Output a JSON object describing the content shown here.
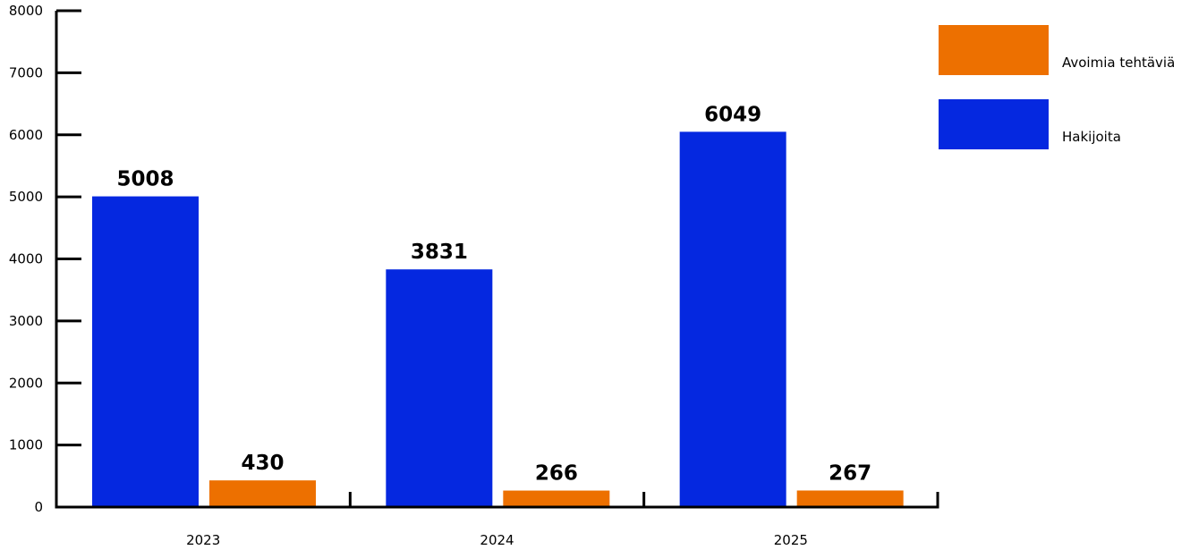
{
  "chart_data": {
    "type": "bar",
    "categories": [
      "2023",
      "2024",
      "2025"
    ],
    "series": [
      {
        "name": "Hakijoita",
        "values": [
          5008,
          3831,
          6049
        ],
        "color": "#0528e0"
      },
      {
        "name": "Avoimia tehtäviä",
        "values": [
          430,
          266,
          267
        ],
        "color": "#ed7000"
      }
    ],
    "data_labels": [
      [
        "5008",
        "3831",
        "6049"
      ],
      [
        "430",
        "266",
        "267"
      ]
    ],
    "yticks": [
      "0",
      "1000",
      "2000",
      "3000",
      "4000",
      "5000",
      "6000",
      "7000",
      "8000"
    ],
    "ylim": [
      0,
      8000
    ],
    "title": "",
    "xlabel": "",
    "ylabel": "",
    "grid": false,
    "legend": {
      "position": "top-right",
      "order": [
        1,
        0
      ]
    }
  }
}
